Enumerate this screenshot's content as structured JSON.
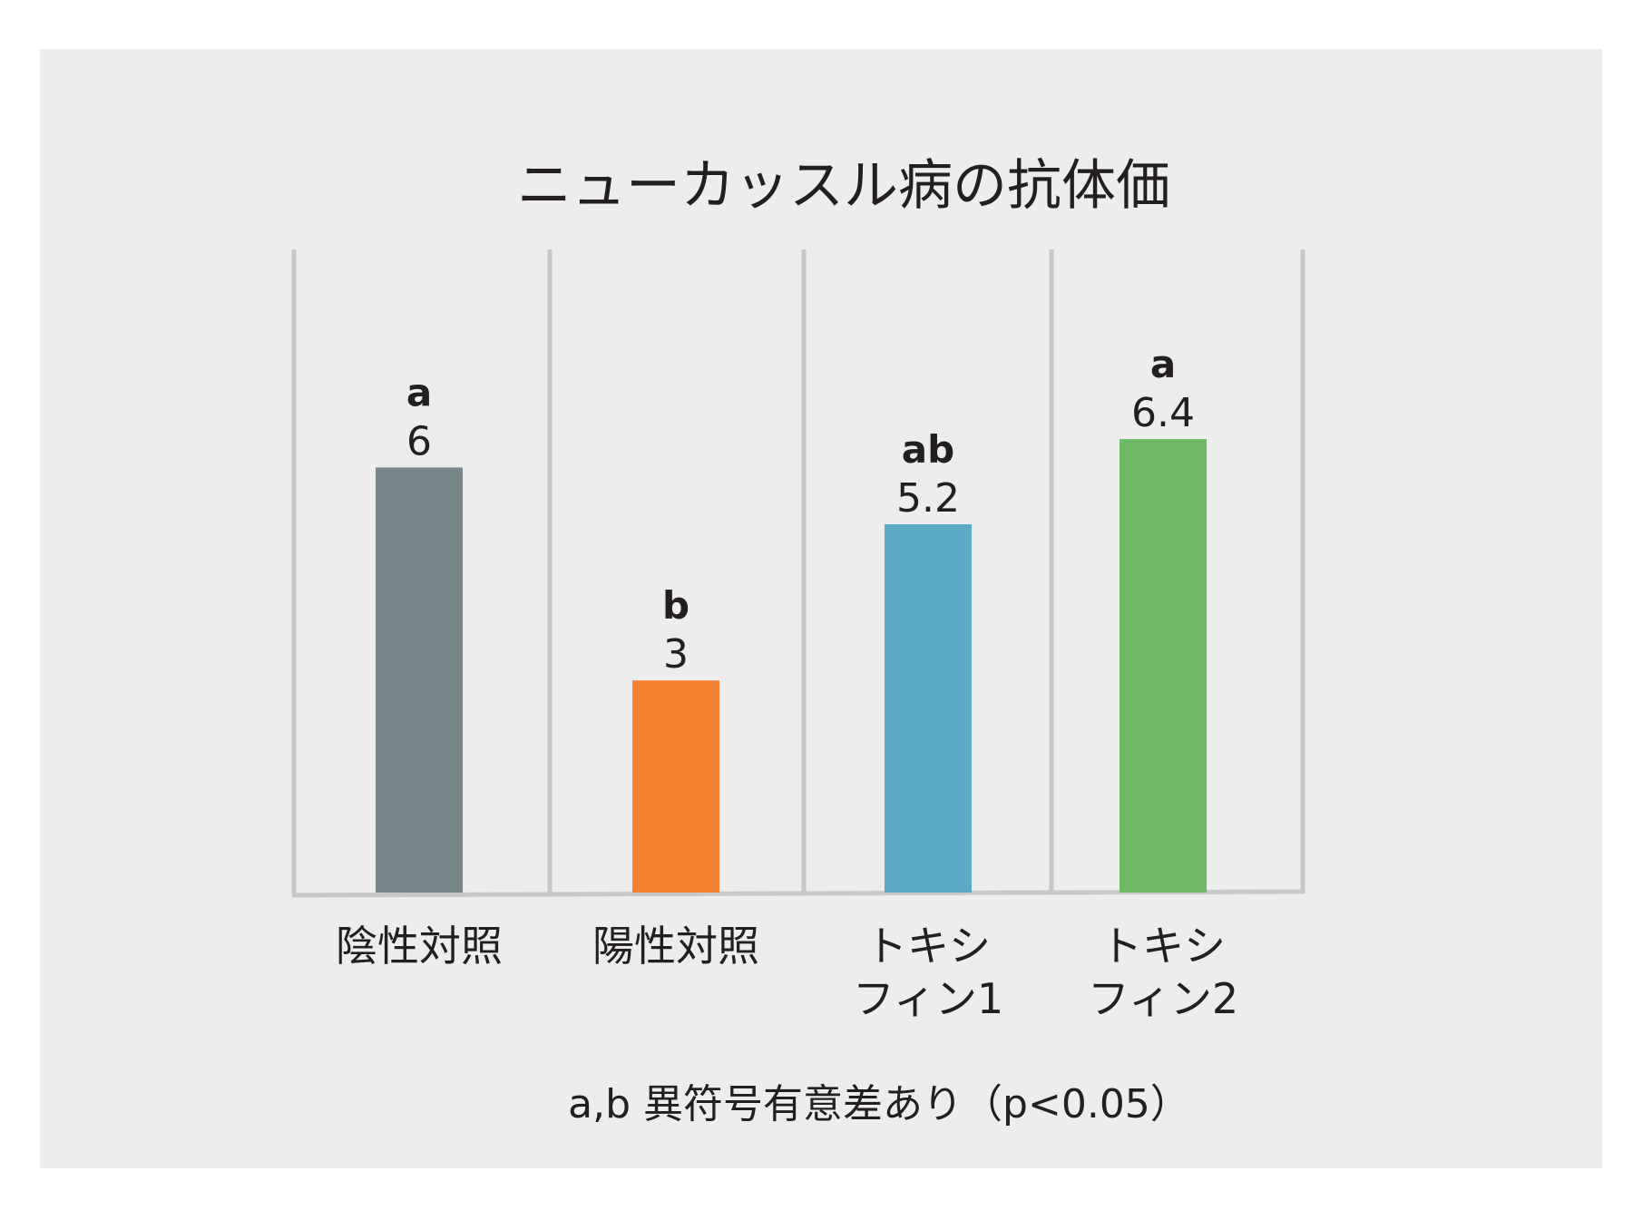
{
  "chart_data": {
    "type": "bar",
    "title": "ニューカッスル病の抗体価",
    "categories": [
      [
        "陰性対照"
      ],
      [
        "陽性対照"
      ],
      [
        "トキシ",
        "フィン1"
      ],
      [
        "トキシ",
        "フィン2"
      ]
    ],
    "values": [
      6,
      3,
      5.2,
      6.4
    ],
    "value_labels": [
      "6",
      "3",
      "5.2",
      "6.4"
    ],
    "significance_letters": [
      "a",
      "b",
      "ab",
      "a"
    ],
    "colors": [
      "#788789",
      "#f38131",
      "#5aabc5",
      "#6db964"
    ],
    "ylim": [
      0,
      7.5
    ],
    "grid": false,
    "footnote": "a,b 異符号有意差あり（p<0.05）"
  }
}
